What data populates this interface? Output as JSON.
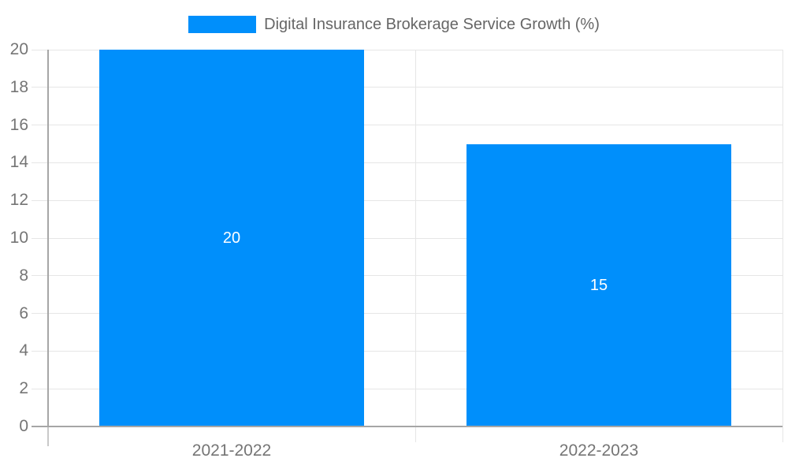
{
  "chart_data": {
    "type": "bar",
    "title": "Digital Insurance Brokerage Service Growth (%)",
    "categories": [
      "2021-2022",
      "2022-2023"
    ],
    "series": [
      {
        "name": "Digital Insurance Brokerage Service Growth (%)",
        "values": [
          20,
          15
        ]
      }
    ],
    "data_labels": [
      "20",
      "15"
    ],
    "yticks": [
      0,
      2,
      4,
      6,
      8,
      10,
      12,
      14,
      16,
      18,
      20
    ],
    "ylim": [
      0,
      20
    ],
    "xlabel": "",
    "ylabel": "",
    "grid": true,
    "legend_position": "top",
    "colors": {
      "bar": "#008ffb",
      "axis_line": "#a6a6a6",
      "axis_tick_below": "#c9c9c9",
      "gridline": "#e6e6e6",
      "tick_label": "#757575",
      "legend_text": "#666666",
      "data_label": "#ffffff",
      "background": "#ffffff"
    }
  }
}
